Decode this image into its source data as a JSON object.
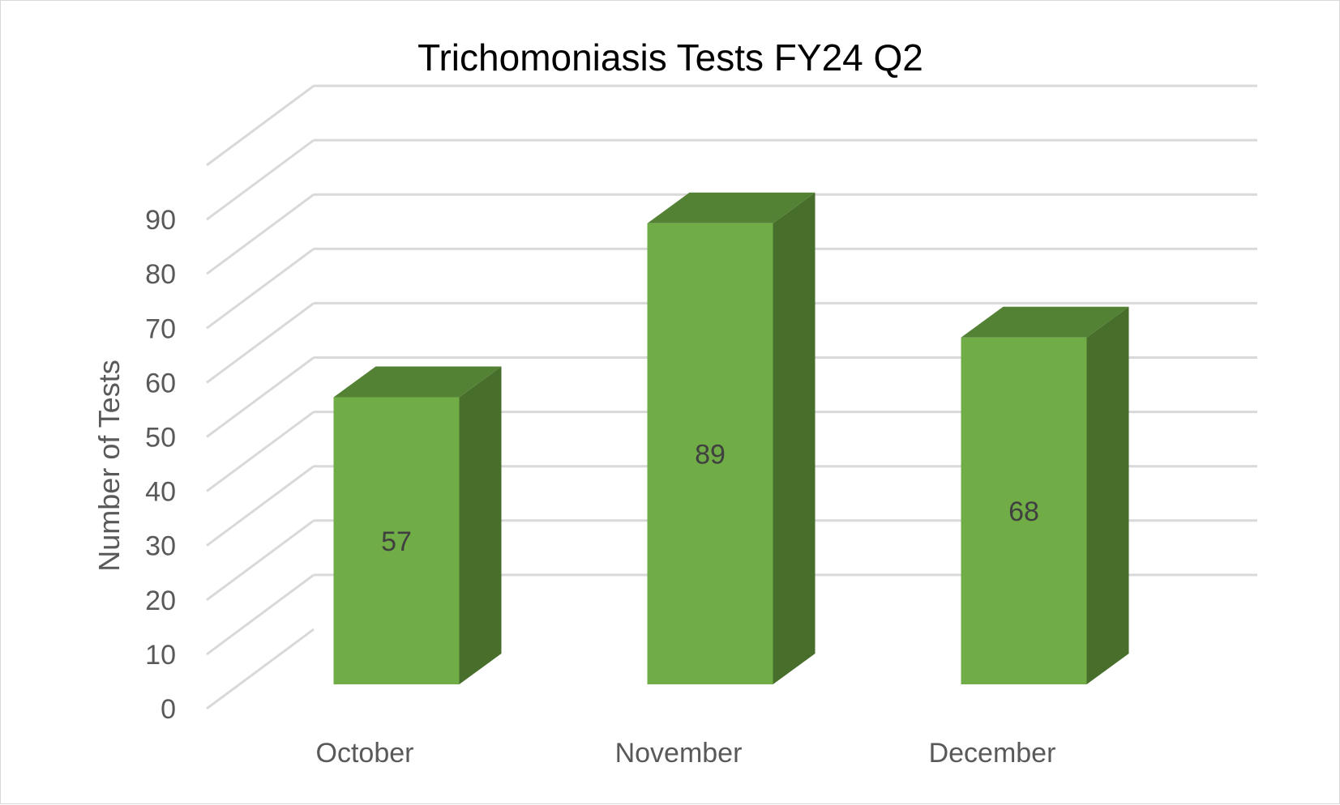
{
  "chart_data": {
    "type": "bar",
    "style": "3d-column",
    "title": "Trichomoniasis Tests FY24 Q2",
    "xlabel": "",
    "ylabel": "Number of Tests",
    "categories": [
      "October",
      "November",
      "December"
    ],
    "values": [
      57,
      89,
      68
    ],
    "data_labels": [
      "57",
      "89",
      "68"
    ],
    "ylim": [
      0,
      100
    ],
    "yticks": [
      "0",
      "10",
      "20",
      "30",
      "40",
      "50",
      "60",
      "70",
      "80",
      "90"
    ],
    "grid": true,
    "legend": "none",
    "colors": {
      "bar_front": "#70ad47",
      "bar_top": "#548235",
      "bar_side": "#486e2b",
      "grid": "#d9d9d9"
    }
  }
}
